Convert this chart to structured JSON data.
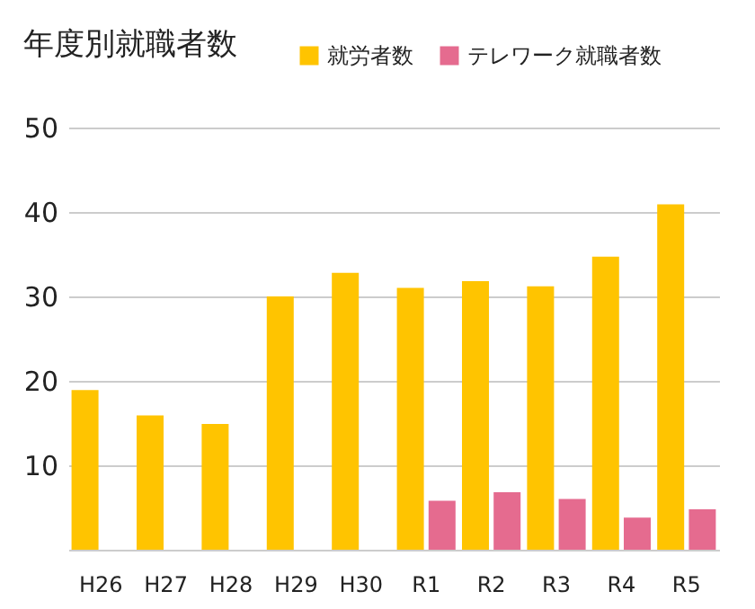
{
  "chart_data": {
    "type": "bar",
    "title": "年度別就職者数",
    "categories": [
      "H26",
      "H27",
      "H28",
      "H29",
      "H30",
      "R1",
      "R2",
      "R3",
      "R4",
      "R5"
    ],
    "series": [
      {
        "name": "就労者数",
        "color": "#ffc400",
        "values": [
          18.9,
          15.9,
          14.9,
          30.0,
          32.8,
          31.0,
          31.8,
          31.2,
          34.7,
          40.9
        ]
      },
      {
        "name": "テレワーク就職者数",
        "color": "#e56b8f",
        "values": [
          null,
          null,
          null,
          null,
          null,
          5.8,
          6.8,
          6.0,
          3.8,
          4.8
        ]
      }
    ],
    "ylim": [
      0,
      50
    ],
    "yticks": [
      10,
      20,
      30,
      40,
      50
    ],
    "grid": "y",
    "legend": "top right"
  }
}
